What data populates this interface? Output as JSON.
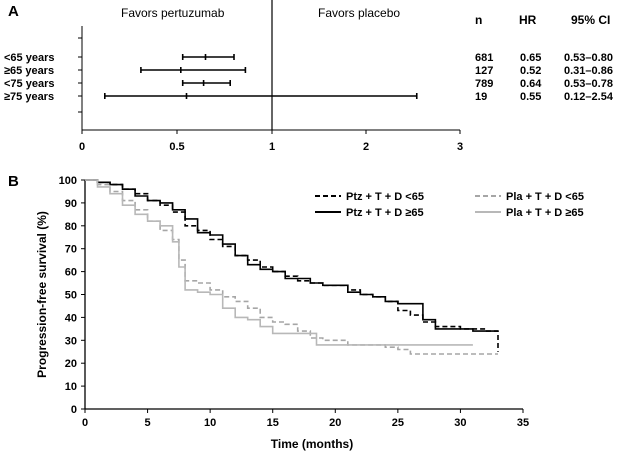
{
  "panel_a": {
    "label": "A",
    "favors_left": "Favors pertuzumab",
    "favors_right": "Favors placebo",
    "col_headers": [
      "n",
      "HR",
      "95% CI"
    ]
  },
  "panel_b": {
    "label": "B"
  },
  "chart_data": [
    {
      "type": "forest",
      "xlim": [
        0,
        3
      ],
      "x_ticks": [
        "0",
        "0.5",
        "1",
        "2",
        "3"
      ],
      "reference_line": 1,
      "rows": [
        {
          "label": "<65 years",
          "n": "681",
          "hr": 0.65,
          "ci_low": 0.53,
          "ci_high": 0.8,
          "hr_text": "0.65",
          "ci_text": "0.53–0.80"
        },
        {
          "label": "≥65 years",
          "n": "127",
          "hr": 0.52,
          "ci_low": 0.31,
          "ci_high": 0.86,
          "hr_text": "0.52",
          "ci_text": "0.31–0.86"
        },
        {
          "label": "<75 years",
          "n": "789",
          "hr": 0.64,
          "ci_low": 0.53,
          "ci_high": 0.78,
          "hr_text": "0.64",
          "ci_text": "0.53–0.78"
        },
        {
          "label": "≥75 years",
          "n": "19",
          "hr": 0.55,
          "ci_low": 0.12,
          "ci_high": 2.54,
          "hr_text": "0.55",
          "ci_text": "0.12–2.54"
        }
      ]
    },
    {
      "type": "line",
      "xlabel": "Time (months)",
      "ylabel": "Progression-free survival (%)",
      "xlim": [
        0,
        35
      ],
      "ylim": [
        0,
        100
      ],
      "x_ticks": [
        0,
        5,
        10,
        15,
        20,
        25,
        30,
        35
      ],
      "y_ticks": [
        0,
        10,
        20,
        30,
        40,
        50,
        60,
        70,
        80,
        90,
        100
      ],
      "legend_position": "top-right",
      "series": [
        {
          "name": "Ptz + T + D <65",
          "color": "#000000",
          "dashed": true,
          "points": [
            [
              0,
              100
            ],
            [
              1,
              99
            ],
            [
              2,
              98
            ],
            [
              3,
              96
            ],
            [
              4,
              94
            ],
            [
              5,
              91
            ],
            [
              6,
              89
            ],
            [
              7,
              86
            ],
            [
              8,
              80
            ],
            [
              9,
              78
            ],
            [
              10,
              74
            ],
            [
              11,
              71
            ],
            [
              12,
              67
            ],
            [
              13,
              65
            ],
            [
              14,
              62
            ],
            [
              15,
              60
            ],
            [
              16,
              58
            ],
            [
              17,
              56
            ],
            [
              18,
              55
            ],
            [
              19,
              54
            ],
            [
              20,
              54
            ],
            [
              21,
              52
            ],
            [
              22,
              50
            ],
            [
              23,
              49
            ],
            [
              24,
              47
            ],
            [
              25,
              43
            ],
            [
              26,
              41
            ],
            [
              27,
              38
            ],
            [
              28,
              36
            ],
            [
              29,
              36
            ],
            [
              30,
              35
            ],
            [
              31,
              35
            ],
            [
              32,
              34
            ],
            [
              33,
              34
            ],
            [
              33,
              25
            ]
          ]
        },
        {
          "name": "Ptz + T + D ≥65",
          "color": "#000000",
          "dashed": false,
          "points": [
            [
              0,
              100
            ],
            [
              1,
              99
            ],
            [
              2,
              98
            ],
            [
              3,
              96
            ],
            [
              4,
              93
            ],
            [
              5,
              91
            ],
            [
              6,
              90
            ],
            [
              7,
              87
            ],
            [
              8,
              83
            ],
            [
              9,
              77
            ],
            [
              10,
              76
            ],
            [
              11,
              72
            ],
            [
              12,
              67
            ],
            [
              13,
              63
            ],
            [
              14,
              61
            ],
            [
              15,
              60
            ],
            [
              16,
              57
            ],
            [
              17,
              57
            ],
            [
              18,
              55
            ],
            [
              19,
              54
            ],
            [
              20,
              54
            ],
            [
              21,
              51
            ],
            [
              22,
              50
            ],
            [
              23,
              49
            ],
            [
              24,
              47
            ],
            [
              25,
              46
            ],
            [
              26,
              46
            ],
            [
              27,
              39
            ],
            [
              28,
              35
            ],
            [
              29,
              35
            ],
            [
              30,
              35
            ],
            [
              31,
              34
            ],
            [
              32,
              34
            ],
            [
              33,
              34
            ]
          ]
        },
        {
          "name": "Pla + T + D <65",
          "color": "#a6a6a6",
          "dashed": true,
          "points": [
            [
              0,
              100
            ],
            [
              1,
              98
            ],
            [
              2,
              95
            ],
            [
              3,
              91
            ],
            [
              4,
              87
            ],
            [
              5,
              82
            ],
            [
              6,
              78
            ],
            [
              7,
              74
            ],
            [
              7.5,
              65
            ],
            [
              8,
              56
            ],
            [
              9,
              55
            ],
            [
              10,
              52
            ],
            [
              11,
              49
            ],
            [
              12,
              47
            ],
            [
              13,
              44
            ],
            [
              14,
              40
            ],
            [
              15,
              38
            ],
            [
              16,
              37
            ],
            [
              17,
              34
            ],
            [
              18,
              31
            ],
            [
              19,
              30
            ],
            [
              20,
              30
            ],
            [
              21,
              28
            ],
            [
              22,
              28
            ],
            [
              23,
              28
            ],
            [
              24,
              27
            ],
            [
              25,
              26
            ],
            [
              26,
              24
            ],
            [
              27,
              24
            ],
            [
              28,
              24
            ],
            [
              29,
              24
            ],
            [
              30,
              24
            ],
            [
              31,
              24
            ],
            [
              32,
              24
            ],
            [
              33,
              24
            ]
          ]
        },
        {
          "name": "Pla + T + D ≥65",
          "color": "#b8b8b8",
          "dashed": false,
          "points": [
            [
              0,
              100
            ],
            [
              1,
              97
            ],
            [
              2,
              94
            ],
            [
              3,
              89
            ],
            [
              4,
              85
            ],
            [
              5,
              82
            ],
            [
              6,
              80
            ],
            [
              7,
              73
            ],
            [
              7.5,
              62
            ],
            [
              8,
              52
            ],
            [
              9,
              51
            ],
            [
              10,
              50
            ],
            [
              11,
              44
            ],
            [
              12,
              40
            ],
            [
              13,
              39
            ],
            [
              14,
              36
            ],
            [
              15,
              33
            ],
            [
              16,
              33
            ],
            [
              17,
              33
            ],
            [
              18,
              33
            ],
            [
              18.5,
              28
            ],
            [
              19,
              28
            ],
            [
              20,
              28
            ],
            [
              21,
              28
            ],
            [
              22,
              28
            ],
            [
              23,
              28
            ],
            [
              24,
              28
            ],
            [
              25,
              28
            ],
            [
              26,
              28
            ],
            [
              27,
              28
            ],
            [
              28,
              28
            ],
            [
              29,
              28
            ],
            [
              30,
              28
            ],
            [
              31,
              28
            ]
          ]
        }
      ]
    }
  ]
}
